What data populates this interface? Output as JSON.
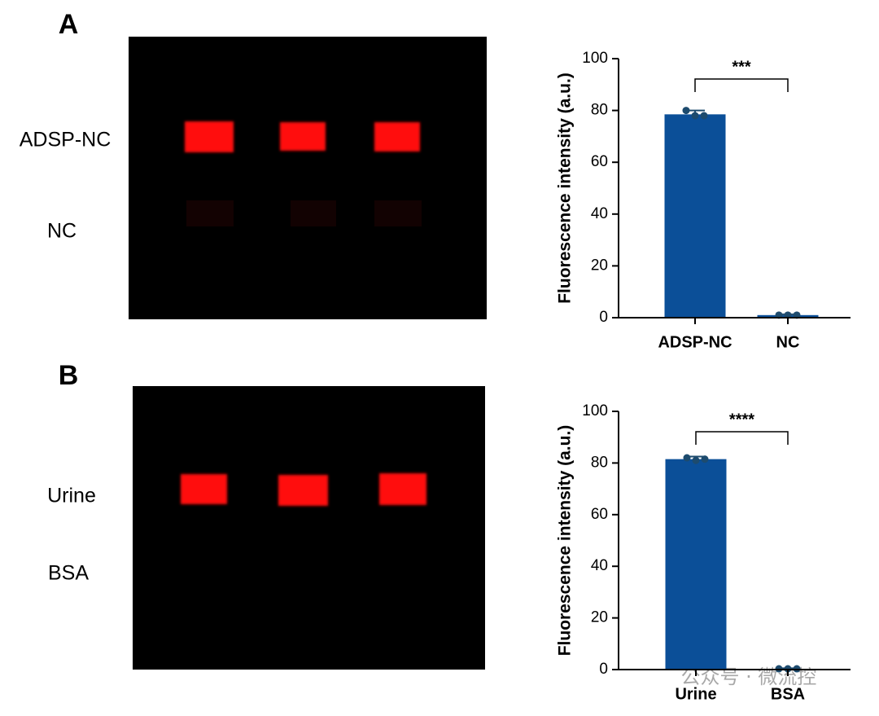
{
  "panels": [
    {
      "label": "A",
      "rows": [
        "ADSP-NC",
        "NC"
      ]
    },
    {
      "label": "B",
      "rows": [
        "Urine",
        "BSA"
      ]
    }
  ],
  "watermark": "公众号 · 微流控",
  "chart_data": [
    {
      "type": "bar",
      "ylabel": "Fluorescence intensity (a.u.)",
      "categories": [
        "ADSP-NC",
        "NC"
      ],
      "values": [
        78.5,
        1
      ],
      "errors": [
        1.5,
        0.3
      ],
      "points": [
        [
          80,
          78,
          78
        ],
        [
          1,
          1,
          1
        ]
      ],
      "color": "#0b4f98",
      "point_color": "#1d4b6e",
      "significance": "***",
      "ylim": [
        0,
        100
      ],
      "yticks": [
        0,
        20,
        40,
        60,
        80,
        100
      ]
    },
    {
      "type": "bar",
      "ylabel": "Fluorescence intensity (a.u.)",
      "categories": [
        "Urine",
        "BSA"
      ],
      "values": [
        81.5,
        0.3
      ],
      "errors": [
        1,
        0.2
      ],
      "points": [
        [
          82,
          81,
          81.5
        ],
        [
          0.3,
          0.3,
          0.3
        ]
      ],
      "color": "#0b4f98",
      "point_color": "#1d4b6e",
      "significance": "****",
      "ylim": [
        0,
        100
      ],
      "yticks": [
        0,
        20,
        40,
        60,
        80,
        100
      ]
    }
  ]
}
